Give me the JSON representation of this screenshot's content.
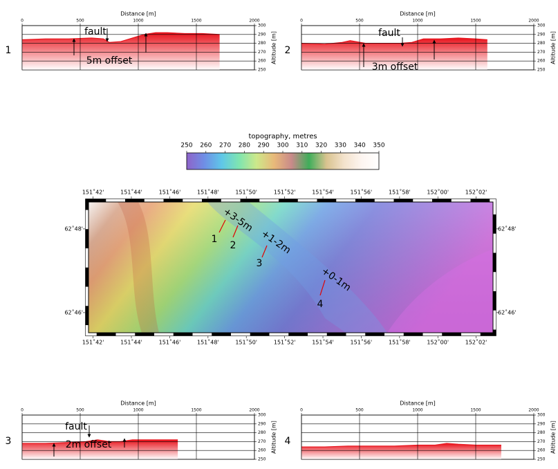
{
  "chart_data": [
    {
      "type": "area",
      "label": "1",
      "title": "Distance [m]",
      "y_label": "Altitude [m]",
      "xlim": [
        0,
        2000
      ],
      "xticks": [
        0,
        500,
        1000,
        1500,
        2000
      ],
      "ylim": [
        250,
        300
      ],
      "yticks": [
        250,
        260,
        270,
        280,
        290,
        300
      ],
      "color": "#e8121b",
      "grid": true,
      "x": [
        0,
        200,
        400,
        600,
        700,
        750,
        850,
        950,
        1050,
        1150,
        1250,
        1400,
        1550,
        1700
      ],
      "values": [
        284,
        285,
        285,
        286,
        285,
        281,
        282,
        286,
        290,
        292,
        292,
        291,
        291,
        290
      ],
      "annotations": [
        "fault",
        "5m offset"
      ]
    },
    {
      "type": "area",
      "label": "2",
      "title": "Distance [m]",
      "y_label": "Altitude [m]",
      "xlim": [
        0,
        2000
      ],
      "xticks": [
        0,
        500,
        1000,
        1500,
        2000
      ],
      "ylim": [
        250,
        300
      ],
      "yticks": [
        250,
        260,
        270,
        280,
        290,
        300
      ],
      "color": "#e8121b",
      "grid": true,
      "x": [
        0,
        200,
        350,
        420,
        550,
        700,
        850,
        950,
        1050,
        1200,
        1350,
        1500,
        1600
      ],
      "values": [
        280,
        279,
        281,
        283,
        280,
        280,
        280,
        281,
        285,
        285,
        286,
        285,
        284
      ],
      "annotations": [
        "fault",
        "3m offset"
      ]
    },
    {
      "type": "area",
      "label": "3",
      "title": "Distance [m]",
      "y_label": "Altitude [m]",
      "xlim": [
        0,
        2000
      ],
      "xticks": [
        0,
        500,
        1000,
        1500,
        2000
      ],
      "ylim": [
        250,
        300
      ],
      "yticks": [
        250,
        260,
        270,
        280,
        290,
        300
      ],
      "color": "#e8121b",
      "grid": true,
      "x": [
        0,
        200,
        400,
        550,
        650,
        750,
        850,
        950,
        1100,
        1250,
        1340
      ],
      "values": [
        268,
        268,
        269,
        270,
        272,
        270,
        270,
        272,
        272,
        272,
        272
      ],
      "annotations": [
        "fault",
        "2m offset"
      ]
    },
    {
      "type": "area",
      "label": "4",
      "title": "Distance [m]",
      "y_label": "Altitude [m]",
      "xlim": [
        0,
        2000
      ],
      "xticks": [
        0,
        500,
        1000,
        1500,
        2000
      ],
      "ylim": [
        250,
        300
      ],
      "yticks": [
        250,
        260,
        270,
        280,
        290,
        300
      ],
      "color": "#e8121b",
      "grid": true,
      "x": [
        0,
        200,
        400,
        600,
        800,
        1000,
        1150,
        1250,
        1350,
        1500,
        1720
      ],
      "values": [
        264,
        264,
        265,
        265,
        265,
        266,
        266,
        268,
        267,
        266,
        266
      ],
      "annotations": []
    },
    {
      "type": "colorbar",
      "title": "topography, metres",
      "clim": [
        250,
        350
      ],
      "ticks": [
        250,
        260,
        270,
        280,
        290,
        300,
        310,
        320,
        330,
        340,
        350
      ],
      "colors": [
        "#8e63c9",
        "#6f8ee6",
        "#5fc7e8",
        "#7fe5b0",
        "#cde88a",
        "#e8b97a",
        "#c98a8a",
        "#3fae5a",
        "#d9c38f",
        "#f3e2cc",
        "#fdf5f0",
        "#ffffff"
      ]
    },
    {
      "type": "map",
      "xlim": [
        151.696,
        152.048
      ],
      "ylim": [
        62.7587,
        62.8107
      ],
      "xticks": [
        {
          "value": 151.7,
          "label": "151˚42'"
        },
        {
          "value": 151.7333,
          "label": "151˚44'"
        },
        {
          "value": 151.7667,
          "label": "151˚46'"
        },
        {
          "value": 151.8,
          "label": "151˚48'"
        },
        {
          "value": 151.8333,
          "label": "151˚50'"
        },
        {
          "value": 151.8667,
          "label": "151˚52'"
        },
        {
          "value": 151.9,
          "label": "151˚54'"
        },
        {
          "value": 151.9333,
          "label": "151˚56'"
        },
        {
          "value": 151.9667,
          "label": "151˚58'"
        },
        {
          "value": 152.0,
          "label": "152˚00'"
        },
        {
          "value": 152.0333,
          "label": "152˚02'"
        }
      ],
      "yticks": [
        {
          "value": 62.7667,
          "label": "62˚46'"
        },
        {
          "value": 62.8,
          "label": "62˚48'"
        }
      ],
      "annotations": [
        "+3-5m",
        "+1-2m",
        "+0-1m",
        "1",
        "2",
        "3",
        "4"
      ]
    }
  ]
}
